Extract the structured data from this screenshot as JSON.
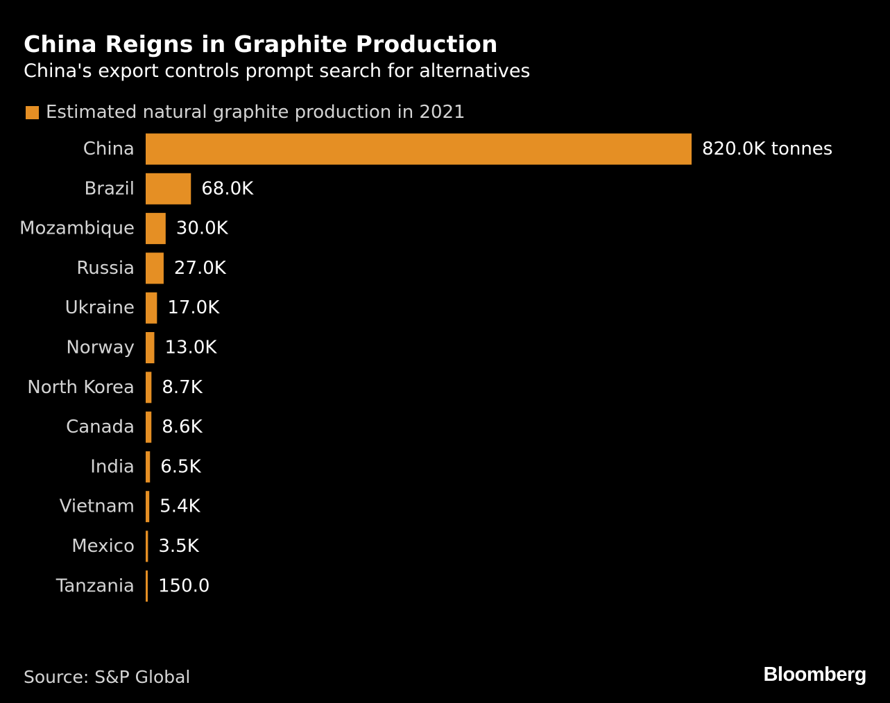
{
  "title": "China Reigns in Graphite Production",
  "subtitle": "China's export controls prompt search for alternatives",
  "legend": {
    "label": "Estimated natural graphite production in 2021",
    "color": "#e58f24"
  },
  "source": "Source: S&P Global",
  "brand": "Bloomberg",
  "chart_data": {
    "type": "bar",
    "orientation": "horizontal",
    "categories": [
      "China",
      "Brazil",
      "Mozambique",
      "Russia",
      "Ukraine",
      "Norway",
      "North Korea",
      "Canada",
      "India",
      "Vietnam",
      "Mexico",
      "Tanzania"
    ],
    "series": [
      {
        "name": "Estimated natural graphite production in 2021",
        "values": [
          820000,
          68000,
          30000,
          27000,
          17000,
          13000,
          8700,
          8600,
          6500,
          5400,
          3500,
          150
        ],
        "labels": [
          "820.0K tonnes",
          "68.0K",
          "30.0K",
          "27.0K",
          "17.0K",
          "13.0K",
          "8.7K",
          "8.6K",
          "6.5K",
          "5.4K",
          "3.5K",
          "150.0"
        ]
      }
    ],
    "title": "China Reigns in Graphite Production",
    "subtitle": "China's export controls prompt search for alternatives",
    "xlabel": "",
    "ylabel": "",
    "xlim": [
      0,
      820000
    ],
    "grid": false,
    "legend_position": "top-left",
    "bar_color": "#e58f24",
    "background": "#000000"
  }
}
